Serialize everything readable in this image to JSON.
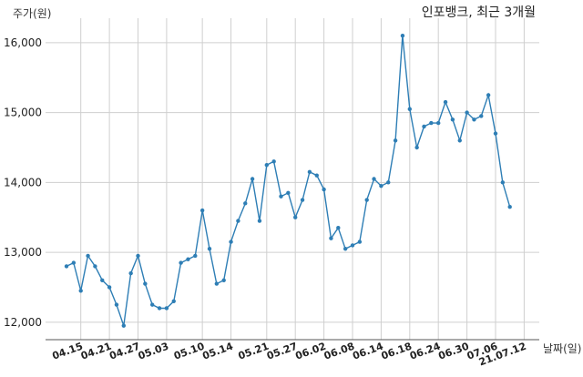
{
  "chart_data": {
    "type": "line",
    "title": "인포뱅크, 최근 3개월",
    "ylabel": "주가(원)",
    "xlabel": "날짜(일)",
    "grid": true,
    "ylim": [
      11750,
      16350
    ],
    "yticks": [
      12000,
      13000,
      14000,
      15000,
      16000
    ],
    "ytick_labels": [
      "12,000",
      "13,000",
      "14,000",
      "15,000",
      "16,000"
    ],
    "xtick_labels": [
      "04.15",
      "04.21",
      "04.27",
      "05.03",
      "05.10",
      "05.14",
      "05.21",
      "05.27",
      "06.02",
      "06.08",
      "06.14",
      "06.18",
      "06.24",
      "06.30",
      "07.06",
      "21.07.12"
    ],
    "xtick_index": [
      2,
      6,
      10,
      14,
      19,
      23,
      28,
      32,
      36,
      40,
      44,
      48,
      52,
      56,
      60,
      64
    ],
    "series": [
      {
        "color": "#2e7eb5",
        "values": [
          12800,
          12850,
          12450,
          12950,
          12800,
          12600,
          12500,
          12250,
          11950,
          12700,
          12950,
          12550,
          12250,
          12200,
          12200,
          12300,
          12850,
          12900,
          12950,
          13600,
          13050,
          12550,
          12600,
          13150,
          13450,
          13700,
          14050,
          13450,
          14250,
          14300,
          13800,
          13850,
          13500,
          13750,
          14150,
          14100,
          13900,
          13200,
          13350,
          13050,
          13100,
          13150,
          13750,
          14050,
          13950,
          14000,
          14600,
          16100,
          15050,
          14500,
          14800,
          14850,
          14850,
          15150,
          14900,
          14600,
          15000,
          14900,
          14950,
          15250,
          14700,
          14000,
          13650
        ]
      }
    ]
  }
}
